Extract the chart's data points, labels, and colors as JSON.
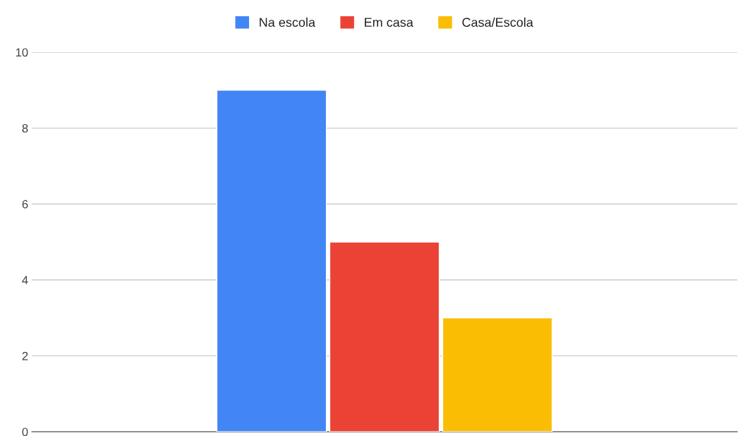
{
  "chart_data": {
    "type": "bar",
    "categories": [
      null
    ],
    "series": [
      {
        "name": "Na escola",
        "color": "#4285f4",
        "values": [
          9
        ]
      },
      {
        "name": "Em casa",
        "color": "#ea4335",
        "values": [
          5
        ]
      },
      {
        "name": "Casa/Escola",
        "color": "#fbbc04",
        "values": [
          3
        ]
      }
    ],
    "ylim": [
      0,
      10
    ],
    "yticks": [
      0,
      2,
      4,
      6,
      8,
      10
    ],
    "grid": "y",
    "legend": "top"
  }
}
